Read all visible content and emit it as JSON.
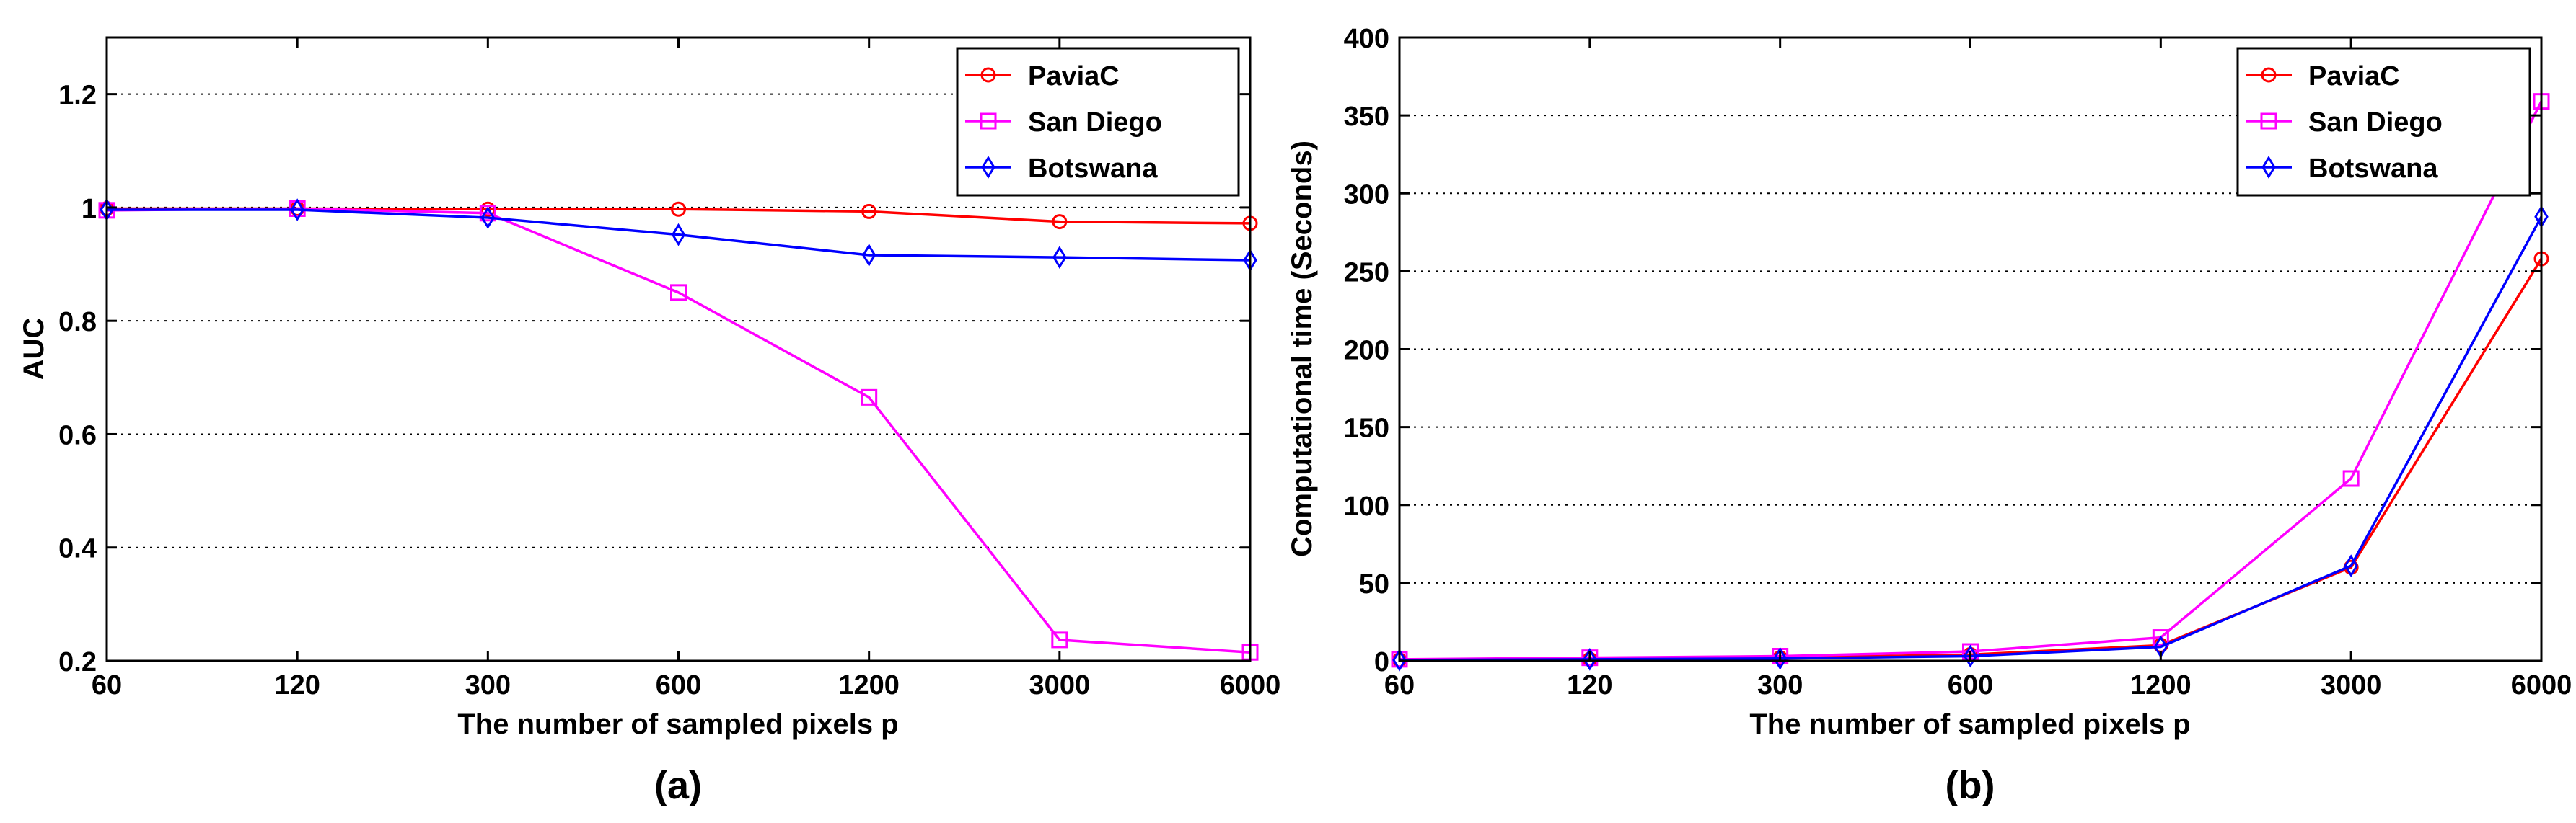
{
  "chart_data": [
    {
      "type": "line",
      "panel_label": "(a)",
      "title": "",
      "xlabel": "The number of sampled pixels p",
      "ylabel": "AUC",
      "categories": [
        "60",
        "120",
        "300",
        "600",
        "1200",
        "3000",
        "6000"
      ],
      "ylim": [
        0.2,
        1.3
      ],
      "yticks": [
        0.2,
        0.4,
        0.6,
        0.8,
        1,
        1.2
      ],
      "ytick_labels": [
        "0.2",
        "0.4",
        "0.6",
        "0.8",
        "1",
        "1.2"
      ],
      "grid": "horizontal-dotted",
      "legend_position": "top-right",
      "series": [
        {
          "name": "PaviaC",
          "color": "#ff0000",
          "marker": "circle",
          "values": [
            0.998,
            0.998,
            0.997,
            0.997,
            0.993,
            0.975,
            0.972
          ]
        },
        {
          "name": "San Diego",
          "color": "#ff00ff",
          "marker": "square",
          "values": [
            0.995,
            0.998,
            0.99,
            0.85,
            0.665,
            0.237,
            0.215
          ]
        },
        {
          "name": "Botswana",
          "color": "#0000ff",
          "marker": "diamond",
          "values": [
            0.996,
            0.996,
            0.982,
            0.952,
            0.916,
            0.912,
            0.907
          ]
        }
      ]
    },
    {
      "type": "line",
      "panel_label": "(b)",
      "title": "",
      "xlabel": "The number of sampled pixels p",
      "ylabel": "Computational time (Seconds)",
      "categories": [
        "60",
        "120",
        "300",
        "600",
        "1200",
        "3000",
        "6000"
      ],
      "ylim": [
        0,
        400
      ],
      "yticks": [
        0,
        50,
        100,
        150,
        200,
        250,
        300,
        350,
        400
      ],
      "ytick_labels": [
        "0",
        "50",
        "100",
        "150",
        "200",
        "250",
        "300",
        "350",
        "400"
      ],
      "grid": "horizontal-dotted",
      "legend_position": "top-right",
      "series": [
        {
          "name": "PaviaC",
          "color": "#ff0000",
          "marker": "circle",
          "values": [
            0.5,
            1,
            2,
            4,
            10,
            60,
            258
          ]
        },
        {
          "name": "San Diego",
          "color": "#ff00ff",
          "marker": "square",
          "values": [
            1,
            2,
            3,
            6,
            15,
            117,
            359
          ]
        },
        {
          "name": "Botswana",
          "color": "#0000ff",
          "marker": "diamond",
          "values": [
            0.5,
            1,
            1.5,
            3,
            9,
            61,
            285
          ]
        }
      ]
    }
  ]
}
